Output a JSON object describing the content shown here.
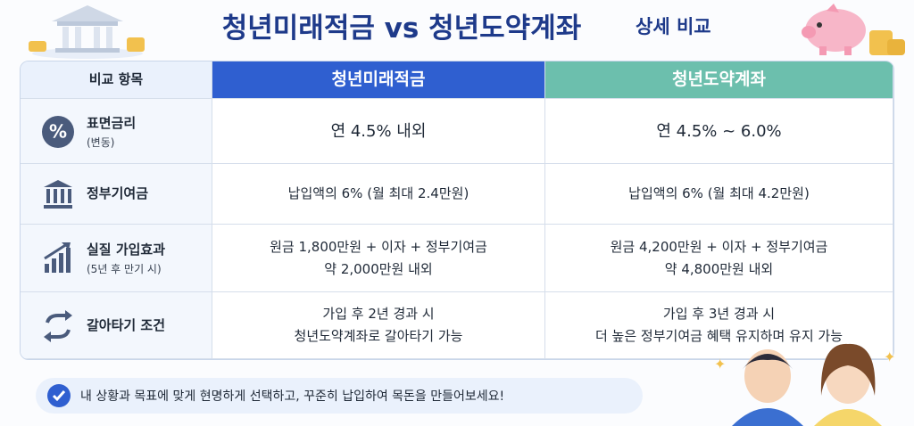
{
  "header": {
    "title": "청년미래적금 vs 청년도약계좌",
    "subtitle": "상세 비교"
  },
  "table": {
    "columns": [
      "비교 항목",
      "청년미래적금",
      "청년도약계좌"
    ],
    "rows": [
      {
        "label": "표면금리",
        "sublabel": "(변동)",
        "cells": [
          [
            "연 4.5% 내외"
          ],
          [
            "연 4.5% ~ 6.0%"
          ]
        ]
      },
      {
        "label": "정부기여금",
        "cells": [
          [
            "납입액의 6% (월 최대 2.4만원)"
          ],
          [
            "납입액의 6% (월 최대 4.2만원)"
          ]
        ]
      },
      {
        "label": "실질 가입효과",
        "sublabel": "(5년 후 만기 시)",
        "cells": [
          [
            "원금 1,800만원 + 이자 + 정부기여금",
            "약 2,000만원 내외"
          ],
          [
            "원금 4,200만원 + 이자 + 정부기여금",
            "약 4,800만원 내외"
          ]
        ]
      },
      {
        "label": "갈아타기 조건",
        "cells": [
          [
            "가입 후 2년 경과 시",
            "청년도약계좌로 갈아타기 가능"
          ],
          [
            "가입 후 3년 경과 시",
            "더 높은 정부기여금 혜택 유지하며 유지 가능"
          ]
        ]
      }
    ]
  },
  "footer": {
    "note": "내 상황과 목표에 맞게 현명하게 선택하고, 꾸준히 납입하여 목돈을 만들어보세요!"
  }
}
